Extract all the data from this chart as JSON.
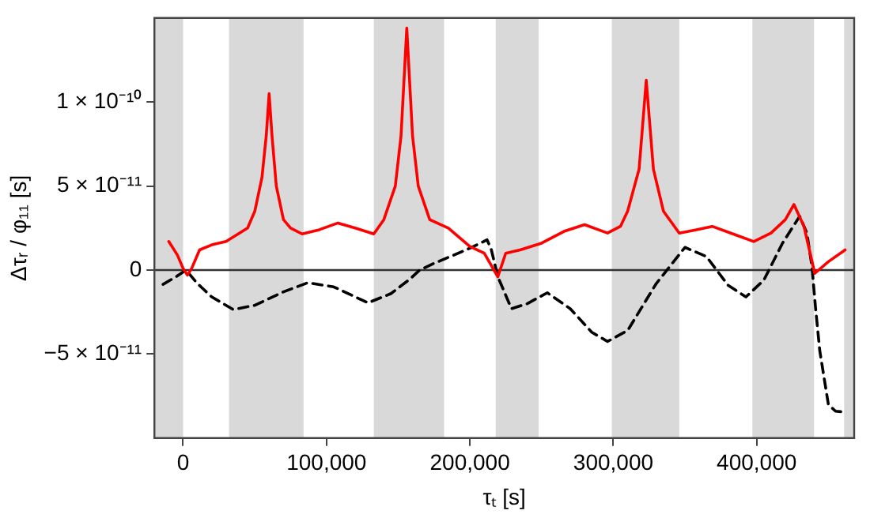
{
  "chart_data": {
    "type": "line",
    "xlabel": "τₜ [s]",
    "ylabel": "Δτᵣ / φ₁₁ [s]",
    "xlim": [
      -20000,
      468000
    ],
    "ylim": [
      -1e-10,
      1.5e-10
    ],
    "xticks": [
      {
        "value": 0,
        "label": "0"
      },
      {
        "value": 100000,
        "label": "100,000"
      },
      {
        "value": 200000,
        "label": "200,000"
      },
      {
        "value": 300000,
        "label": "300,000"
      },
      {
        "value": 400000,
        "label": "400,000"
      }
    ],
    "yticks": [
      {
        "value": -5e-11,
        "label": "−5 × 10⁻¹¹"
      },
      {
        "value": 0,
        "label": "0"
      },
      {
        "value": 5e-11,
        "label": "5 × 10⁻¹¹"
      },
      {
        "value": 1e-10,
        "label": "1 × 10⁻¹⁰"
      }
    ],
    "grid": false,
    "legend": false,
    "marker": "none",
    "series": [
      {
        "color": "#ff0000",
        "line_style": "solid",
        "x": [
          -10000,
          -4000,
          0,
          3000,
          6000,
          11500,
          20000,
          30000,
          45000,
          50000,
          55000,
          58000,
          60000,
          62000,
          65000,
          70000,
          75000,
          83000,
          95000,
          108000,
          120000,
          133000,
          140000,
          148000,
          152000,
          156000,
          160000,
          164000,
          172000,
          185000,
          200000,
          210000,
          219500,
          225000,
          235000,
          250000,
          265600,
          280000,
          296000,
          305000,
          310000,
          318000,
          323000,
          328000,
          335000,
          346000,
          358000,
          369000,
          385000,
          398000,
          410000,
          420000,
          426000,
          433000,
          440500,
          450000,
          461700
        ],
        "values": [
          1.7e-11,
          9e-12,
          1e-12,
          -3e-12,
          1e-12,
          1.2e-11,
          1.5e-11,
          1.7e-11,
          2.5e-11,
          3.5e-11,
          5.5e-11,
          8e-11,
          1.05e-10,
          8e-11,
          5e-11,
          3e-11,
          2.5e-11,
          2.15e-11,
          2.4e-11,
          2.8e-11,
          2.5e-11,
          2.15e-11,
          3e-11,
          5e-11,
          8e-11,
          1.44e-10,
          8e-11,
          5e-11,
          3e-11,
          2.5e-11,
          1.4e-11,
          1e-11,
          -4e-12,
          1e-11,
          1.2e-11,
          1.6e-11,
          2.3e-11,
          2.7e-11,
          2.2e-11,
          2.6e-11,
          3.5e-11,
          6e-11,
          1.13e-10,
          6e-11,
          3.5e-11,
          2.2e-11,
          2.4e-11,
          2.6e-11,
          2.1e-11,
          1.7e-11,
          2.2e-11,
          3e-11,
          3.9e-11,
          2.6e-11,
          -2e-12,
          5e-12,
          1.2e-11
        ]
      },
      {
        "color": "#000000",
        "line_style": "dashed",
        "x": [
          -14000,
          -5000,
          2000,
          10000,
          20000,
          35000,
          50000,
          70000,
          87000,
          105000,
          129000,
          145000,
          158000,
          165000,
          175000,
          189000,
          200000,
          212000,
          215000,
          219500,
          229000,
          240000,
          254000,
          270000,
          285000,
          296000,
          310000,
          330000,
          350000,
          365000,
          380000,
          392500,
          405000,
          418000,
          430000,
          435000,
          438500,
          441000,
          444000,
          450000,
          455000,
          461700
        ],
        "values": [
          -8.5e-12,
          -4e-12,
          0,
          -8e-12,
          -1.6e-11,
          -2.35e-11,
          -2.1e-11,
          -1.3e-11,
          -7.5e-12,
          -1e-11,
          -1.95e-11,
          -1.4e-11,
          -5.5e-12,
          0,
          4e-12,
          9e-12,
          1.3e-11,
          1.8e-11,
          1.2e-11,
          -4e-12,
          -2.3e-11,
          -2e-11,
          -1.35e-11,
          -2.3e-11,
          -3.7e-11,
          -4.25e-11,
          -3.6e-11,
          -8e-12,
          1.35e-11,
          8e-12,
          -9e-12,
          -1.6e-11,
          -6e-12,
          1.6e-11,
          3.2e-11,
          2.2e-11,
          2.5e-12,
          -2.2e-11,
          -4.8e-11,
          -8e-11,
          -8.4e-11,
          -8.45e-11
        ]
      }
    ],
    "ref_lines": [
      {
        "axis": "y",
        "value": 0,
        "color": "#333333",
        "line_style": "solid"
      }
    ],
    "bands": [
      {
        "axis": "x",
        "from": -20000,
        "to": 0,
        "color": "#d9d9d9"
      },
      {
        "axis": "x",
        "from": 32000,
        "to": 84000,
        "color": "#d9d9d9"
      },
      {
        "axis": "x",
        "from": 133000,
        "to": 182000,
        "color": "#d9d9d9"
      },
      {
        "axis": "x",
        "from": 218000,
        "to": 248000,
        "color": "#d9d9d9"
      },
      {
        "axis": "x",
        "from": 299000,
        "to": 346000,
        "color": "#d9d9d9"
      },
      {
        "axis": "x",
        "from": 397000,
        "to": 440000,
        "color": "#d9d9d9"
      },
      {
        "axis": "x",
        "from": 461000,
        "to": 468000,
        "color": "#d9d9d9"
      }
    ]
  }
}
